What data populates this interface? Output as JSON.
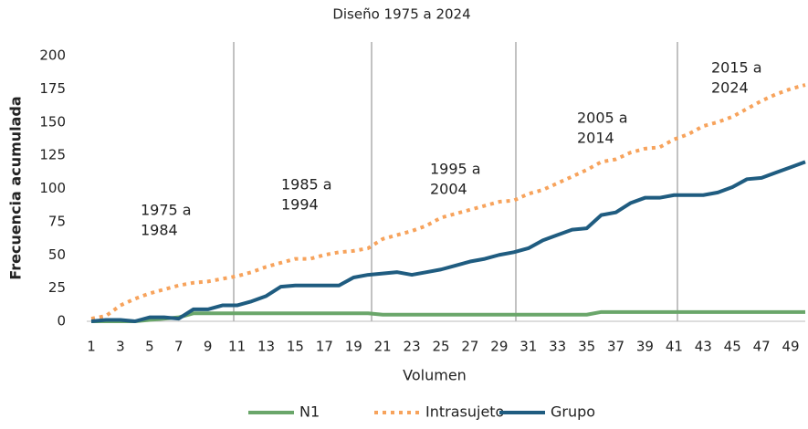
{
  "chart_data": {
    "type": "line",
    "title": "Diseño 1975 a 2024",
    "x_label": "Volumen",
    "y_label": "Frecuencia acumulada",
    "x": [
      1,
      2,
      3,
      4,
      5,
      6,
      7,
      8,
      9,
      10,
      11,
      12,
      13,
      14,
      15,
      16,
      17,
      18,
      19,
      20,
      21,
      22,
      23,
      24,
      25,
      26,
      27,
      28,
      29,
      30,
      31,
      32,
      33,
      34,
      35,
      36,
      37,
      38,
      39,
      40,
      41,
      42,
      43,
      44,
      45,
      46,
      47,
      48,
      49,
      50
    ],
    "xlim": [
      1,
      50
    ],
    "xticks": [
      1,
      3,
      5,
      7,
      9,
      11,
      13,
      15,
      17,
      19,
      21,
      23,
      25,
      27,
      29,
      31,
      33,
      35,
      37,
      39,
      41,
      43,
      45,
      47,
      49
    ],
    "ylim": [
      0,
      200
    ],
    "yticks": [
      0,
      25,
      50,
      75,
      100,
      125,
      150,
      175,
      200
    ],
    "annotations": [
      [
        "1975 a",
        "1984"
      ],
      [
        "1985 a",
        "1994"
      ],
      [
        "1995 a",
        "2004"
      ],
      [
        "2005 a",
        "2014"
      ],
      [
        "2015 a",
        "2024"
      ]
    ],
    "series": [
      {
        "name": "N1",
        "color": "#6aa66a",
        "dash": false,
        "values": [
          0,
          0,
          0,
          0,
          1,
          2,
          3,
          6,
          6,
          6,
          6,
          6,
          6,
          6,
          6,
          6,
          6,
          6,
          6,
          6,
          5,
          5,
          5,
          5,
          5,
          5,
          5,
          5,
          5,
          5,
          5,
          5,
          5,
          5,
          5,
          7,
          7,
          7,
          7,
          7,
          7,
          7,
          7,
          7,
          7,
          7,
          7,
          7,
          7,
          7
        ]
      },
      {
        "name": "Intrasujeto",
        "color": "#f7a35c",
        "dash": true,
        "values": [
          2,
          4,
          12,
          17,
          21,
          24,
          27,
          29,
          30,
          32,
          34,
          37,
          41,
          44,
          47,
          47,
          50,
          52,
          53,
          55,
          62,
          65,
          68,
          72,
          78,
          81,
          84,
          87,
          90,
          91,
          96,
          99,
          104,
          109,
          114,
          120,
          122,
          127,
          130,
          131,
          137,
          141,
          147,
          150,
          154,
          160,
          166,
          171,
          175,
          178
        ]
      },
      {
        "name": "Grupo",
        "color": "#1f5c80",
        "dash": false,
        "values": [
          0,
          1,
          1,
          0,
          3,
          3,
          2,
          9,
          9,
          12,
          12,
          15,
          19,
          26,
          27,
          27,
          27,
          27,
          33,
          35,
          36,
          37,
          35,
          37,
          39,
          42,
          45,
          47,
          50,
          52,
          55,
          61,
          65,
          69,
          70,
          80,
          82,
          89,
          93,
          93,
          95,
          95,
          95,
          97,
          101,
          107,
          108,
          112,
          116,
          120
        ]
      }
    ]
  }
}
